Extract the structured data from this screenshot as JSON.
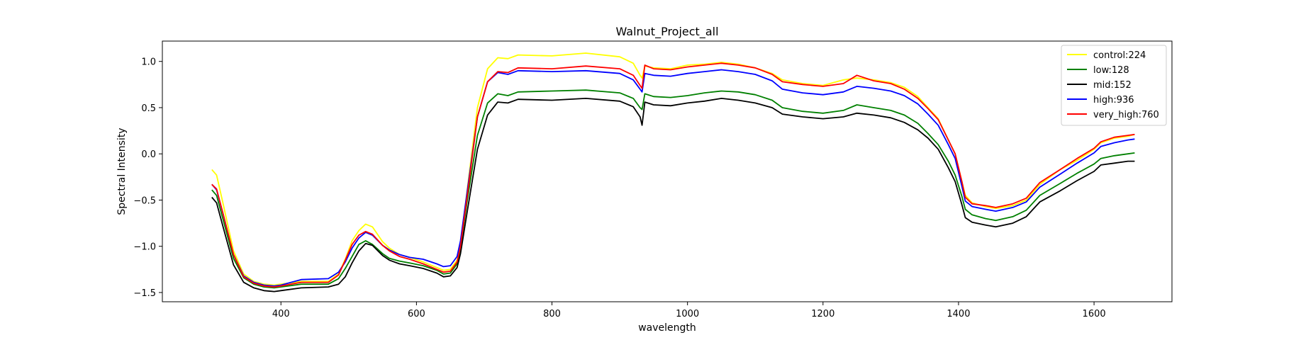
{
  "chart_data": {
    "type": "line",
    "title": "Walnut_Project_all",
    "xlabel": "wavelength",
    "ylabel": "Spectral Intensity",
    "xlim": [
      225,
      1715
    ],
    "ylim": [
      -1.6,
      1.22
    ],
    "xticks": [
      400,
      600,
      800,
      1000,
      1200,
      1400,
      1600
    ],
    "yticks": [
      -1.5,
      -1.0,
      -0.5,
      0.0,
      0.5,
      1.0
    ],
    "grid": false,
    "legend_position": "top-right",
    "series": [
      {
        "name": "control:224",
        "color": "#ffff00",
        "x": [
          298,
          305,
          315,
          330,
          345,
          360,
          375,
          390,
          400,
          430,
          470,
          485,
          495,
          505,
          515,
          525,
          535,
          550,
          560,
          575,
          590,
          610,
          630,
          640,
          650,
          660,
          665,
          675,
          690,
          705,
          720,
          735,
          750,
          800,
          850,
          900,
          920,
          930,
          933,
          937,
          950,
          975,
          1000,
          1025,
          1050,
          1075,
          1100,
          1125,
          1140,
          1170,
          1200,
          1230,
          1250,
          1275,
          1300,
          1320,
          1340,
          1355,
          1370,
          1385,
          1395,
          1405,
          1410,
          1420,
          1440,
          1455,
          1480,
          1500,
          1520,
          1550,
          1575,
          1600,
          1610,
          1630,
          1650,
          1660
        ],
        "y": [
          -0.17,
          -0.23,
          -0.55,
          -1.05,
          -1.3,
          -1.38,
          -1.41,
          -1.42,
          -1.41,
          -1.38,
          -1.38,
          -1.3,
          -1.14,
          -0.94,
          -0.83,
          -0.76,
          -0.79,
          -0.95,
          -1.02,
          -1.09,
          -1.12,
          -1.17,
          -1.23,
          -1.26,
          -1.25,
          -1.15,
          -0.98,
          -0.38,
          0.5,
          0.92,
          1.04,
          1.03,
          1.07,
          1.06,
          1.09,
          1.05,
          0.98,
          0.85,
          0.82,
          0.95,
          0.93,
          0.92,
          0.96,
          0.97,
          0.99,
          0.97,
          0.93,
          0.87,
          0.8,
          0.76,
          0.74,
          0.8,
          0.82,
          0.8,
          0.77,
          0.72,
          0.62,
          0.5,
          0.38,
          0.15,
          0.0,
          -0.3,
          -0.45,
          -0.53,
          -0.57,
          -0.59,
          -0.56,
          -0.5,
          -0.33,
          -0.17,
          -0.07,
          0.05,
          0.12,
          0.17,
          0.19,
          0.21
        ]
      },
      {
        "name": "low:128",
        "color": "#008000",
        "x": [
          298,
          305,
          315,
          330,
          345,
          360,
          375,
          390,
          400,
          430,
          470,
          485,
          495,
          505,
          515,
          525,
          535,
          550,
          560,
          575,
          590,
          610,
          630,
          640,
          650,
          660,
          665,
          675,
          690,
          705,
          720,
          735,
          750,
          800,
          850,
          900,
          920,
          930,
          933,
          937,
          950,
          975,
          1000,
          1025,
          1050,
          1075,
          1100,
          1125,
          1140,
          1170,
          1200,
          1230,
          1250,
          1275,
          1300,
          1320,
          1340,
          1355,
          1370,
          1385,
          1395,
          1405,
          1410,
          1420,
          1440,
          1455,
          1480,
          1500,
          1520,
          1550,
          1575,
          1600,
          1610,
          1630,
          1650,
          1660
        ],
        "y": [
          -0.39,
          -0.45,
          -0.72,
          -1.13,
          -1.34,
          -1.41,
          -1.44,
          -1.45,
          -1.44,
          -1.41,
          -1.41,
          -1.35,
          -1.24,
          -1.11,
          -0.98,
          -0.94,
          -0.98,
          -1.08,
          -1.13,
          -1.16,
          -1.18,
          -1.21,
          -1.26,
          -1.3,
          -1.29,
          -1.19,
          -1.02,
          -0.5,
          0.2,
          0.55,
          0.65,
          0.63,
          0.67,
          0.68,
          0.69,
          0.66,
          0.6,
          0.5,
          0.48,
          0.65,
          0.62,
          0.61,
          0.63,
          0.66,
          0.68,
          0.67,
          0.64,
          0.58,
          0.5,
          0.46,
          0.44,
          0.47,
          0.53,
          0.5,
          0.47,
          0.42,
          0.33,
          0.22,
          0.1,
          -0.08,
          -0.23,
          -0.46,
          -0.6,
          -0.66,
          -0.7,
          -0.72,
          -0.68,
          -0.61,
          -0.45,
          -0.32,
          -0.21,
          -0.11,
          -0.05,
          -0.02,
          0.0,
          0.01
        ]
      },
      {
        "name": "mid:152",
        "color": "#000000",
        "x": [
          298,
          305,
          315,
          330,
          345,
          360,
          375,
          390,
          400,
          430,
          470,
          485,
          495,
          505,
          515,
          525,
          535,
          550,
          560,
          575,
          590,
          610,
          630,
          640,
          650,
          660,
          665,
          675,
          690,
          705,
          720,
          735,
          750,
          800,
          850,
          900,
          920,
          930,
          933,
          937,
          950,
          975,
          1000,
          1025,
          1050,
          1075,
          1100,
          1125,
          1140,
          1170,
          1200,
          1230,
          1250,
          1275,
          1300,
          1320,
          1340,
          1355,
          1370,
          1385,
          1395,
          1405,
          1410,
          1420,
          1440,
          1455,
          1480,
          1500,
          1520,
          1550,
          1575,
          1600,
          1610,
          1630,
          1650,
          1660
        ],
        "y": [
          -0.47,
          -0.53,
          -0.8,
          -1.2,
          -1.39,
          -1.45,
          -1.48,
          -1.49,
          -1.48,
          -1.45,
          -1.44,
          -1.41,
          -1.33,
          -1.18,
          -1.05,
          -0.97,
          -0.99,
          -1.1,
          -1.15,
          -1.19,
          -1.21,
          -1.24,
          -1.29,
          -1.33,
          -1.32,
          -1.23,
          -1.08,
          -0.62,
          0.05,
          0.42,
          0.56,
          0.55,
          0.59,
          0.58,
          0.6,
          0.57,
          0.51,
          0.4,
          0.31,
          0.56,
          0.53,
          0.52,
          0.55,
          0.57,
          0.6,
          0.58,
          0.55,
          0.5,
          0.43,
          0.4,
          0.38,
          0.4,
          0.44,
          0.42,
          0.39,
          0.34,
          0.26,
          0.17,
          0.05,
          -0.15,
          -0.3,
          -0.55,
          -0.69,
          -0.74,
          -0.77,
          -0.79,
          -0.75,
          -0.68,
          -0.52,
          -0.4,
          -0.29,
          -0.19,
          -0.12,
          -0.1,
          -0.08,
          -0.08
        ]
      },
      {
        "name": "high:936",
        "color": "#0000ff",
        "x": [
          298,
          305,
          315,
          330,
          345,
          360,
          375,
          390,
          400,
          430,
          470,
          485,
          495,
          505,
          515,
          525,
          535,
          550,
          560,
          575,
          590,
          610,
          630,
          640,
          650,
          660,
          665,
          675,
          690,
          705,
          720,
          735,
          750,
          800,
          850,
          900,
          920,
          930,
          933,
          937,
          950,
          975,
          1000,
          1025,
          1050,
          1075,
          1100,
          1125,
          1140,
          1170,
          1200,
          1230,
          1250,
          1275,
          1300,
          1320,
          1340,
          1355,
          1370,
          1385,
          1395,
          1405,
          1410,
          1420,
          1440,
          1455,
          1480,
          1500,
          1520,
          1550,
          1575,
          1600,
          1610,
          1630,
          1650,
          1660
        ],
        "y": [
          -0.33,
          -0.39,
          -0.66,
          -1.09,
          -1.32,
          -1.39,
          -1.42,
          -1.43,
          -1.42,
          -1.36,
          -1.35,
          -1.28,
          -1.17,
          -1.02,
          -0.91,
          -0.85,
          -0.88,
          -0.99,
          -1.04,
          -1.09,
          -1.12,
          -1.14,
          -1.19,
          -1.22,
          -1.21,
          -1.11,
          -0.94,
          -0.4,
          0.4,
          0.78,
          0.88,
          0.86,
          0.9,
          0.89,
          0.9,
          0.87,
          0.8,
          0.7,
          0.67,
          0.87,
          0.85,
          0.84,
          0.87,
          0.89,
          0.91,
          0.89,
          0.86,
          0.79,
          0.7,
          0.66,
          0.64,
          0.67,
          0.73,
          0.71,
          0.68,
          0.63,
          0.54,
          0.43,
          0.31,
          0.1,
          -0.05,
          -0.35,
          -0.51,
          -0.57,
          -0.6,
          -0.62,
          -0.58,
          -0.52,
          -0.36,
          -0.22,
          -0.1,
          0.01,
          0.08,
          0.12,
          0.15,
          0.16
        ]
      },
      {
        "name": "very_high:760",
        "color": "#ff0000",
        "x": [
          298,
          305,
          315,
          330,
          345,
          360,
          375,
          390,
          400,
          430,
          470,
          485,
          495,
          505,
          515,
          525,
          535,
          550,
          560,
          575,
          590,
          610,
          630,
          640,
          650,
          660,
          665,
          675,
          690,
          705,
          720,
          735,
          750,
          800,
          850,
          900,
          920,
          930,
          933,
          937,
          950,
          975,
          1000,
          1025,
          1050,
          1075,
          1100,
          1125,
          1140,
          1170,
          1200,
          1230,
          1250,
          1275,
          1300,
          1320,
          1340,
          1355,
          1370,
          1385,
          1395,
          1405,
          1410,
          1420,
          1440,
          1455,
          1480,
          1500,
          1520,
          1550,
          1575,
          1600,
          1610,
          1630,
          1650,
          1660
        ],
        "y": [
          -0.33,
          -0.38,
          -0.66,
          -1.09,
          -1.33,
          -1.4,
          -1.43,
          -1.44,
          -1.43,
          -1.39,
          -1.39,
          -1.31,
          -1.15,
          -0.98,
          -0.88,
          -0.84,
          -0.87,
          -0.99,
          -1.05,
          -1.11,
          -1.14,
          -1.19,
          -1.25,
          -1.28,
          -1.27,
          -1.17,
          -1.0,
          -0.45,
          0.4,
          0.78,
          0.89,
          0.88,
          0.93,
          0.92,
          0.95,
          0.92,
          0.85,
          0.74,
          0.71,
          0.96,
          0.92,
          0.91,
          0.94,
          0.96,
          0.98,
          0.96,
          0.93,
          0.86,
          0.78,
          0.75,
          0.73,
          0.76,
          0.85,
          0.79,
          0.76,
          0.7,
          0.6,
          0.49,
          0.37,
          0.15,
          0.0,
          -0.3,
          -0.47,
          -0.54,
          -0.56,
          -0.58,
          -0.54,
          -0.48,
          -0.31,
          -0.17,
          -0.05,
          0.06,
          0.13,
          0.18,
          0.2,
          0.21
        ]
      }
    ]
  }
}
